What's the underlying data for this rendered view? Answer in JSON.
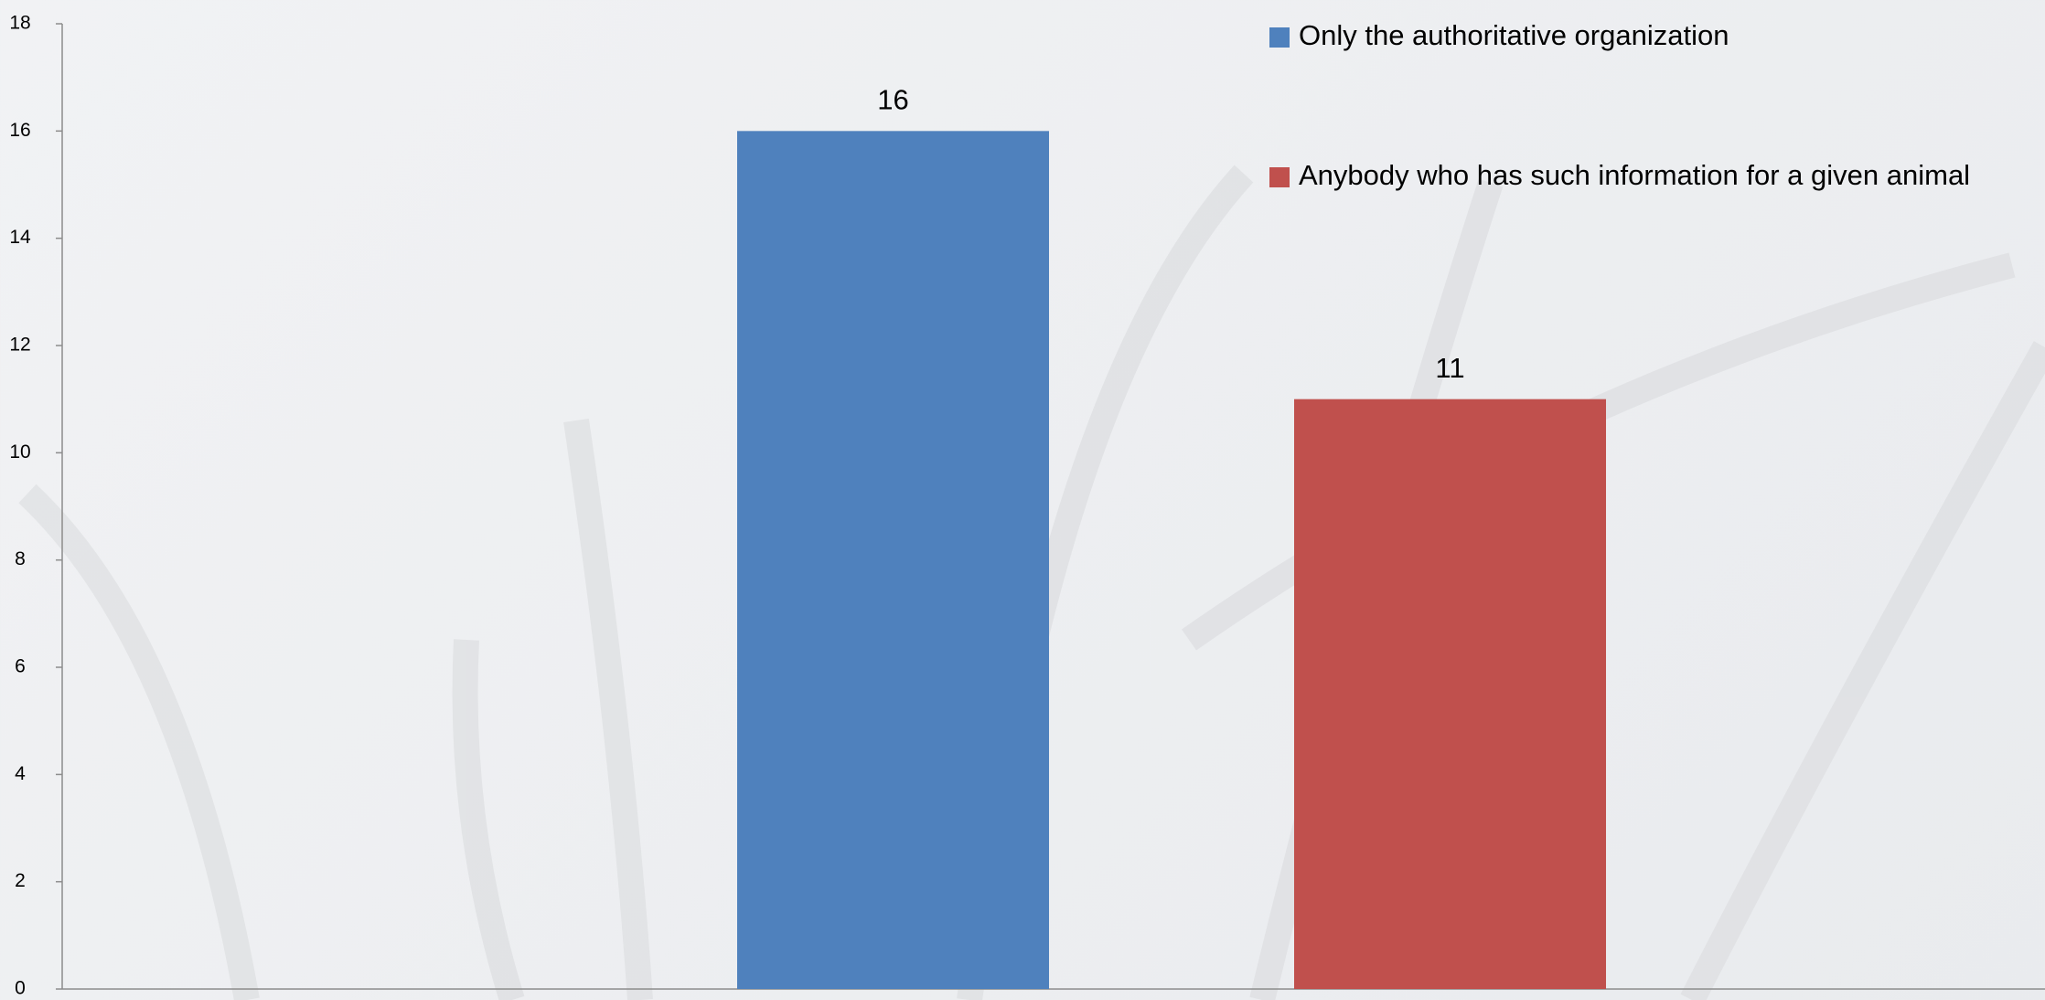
{
  "chart_data": {
    "type": "bar",
    "categories": [
      null
    ],
    "series": [
      {
        "name": "Only the authoritative organization",
        "color": "#4f81bd",
        "values": [
          16
        ]
      },
      {
        "name": "Anybody who has such information for a given animal",
        "color": "#c0504d",
        "values": [
          11
        ]
      }
    ],
    "ylim": [
      0,
      18
    ],
    "yticks": [
      0,
      2,
      4,
      6,
      8,
      10,
      12,
      14,
      16,
      18
    ],
    "legend": "top-right"
  }
}
